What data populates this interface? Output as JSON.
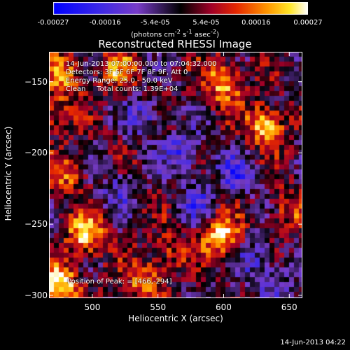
{
  "chart_data": {
    "type": "heatmap",
    "title": "Reconstructed RHESSI Image",
    "xlabel": "Heliocentric X (arcsec)",
    "ylabel": "Heliocentric Y (arcsec)",
    "xlim": [
      467,
      660
    ],
    "ylim": [
      -302,
      -129
    ],
    "x_ticks": [
      500,
      550,
      600,
      650
    ],
    "y_ticks": [
      -150,
      -200,
      -250,
      -300
    ],
    "colorbar": {
      "range": [
        -0.00027,
        0.00027
      ],
      "tick_values": [
        -0.00027,
        -0.00016,
        -5.4e-05,
        5.4e-05,
        0.00016,
        0.00027
      ],
      "tick_labels": [
        "-0.00027",
        "-0.00016",
        "-5.4e-05",
        "5.4e-05",
        "0.00016",
        "0.00027"
      ],
      "unit_label": "(photons cm",
      "unit_sup1": "-2",
      "unit_mid1": " s",
      "unit_sup2": "-1",
      "unit_mid2": " asec",
      "unit_sup3": "-2",
      "unit_end": ")"
    },
    "annotations": {
      "time_range": "14-Jun-2013 07:00:00.000 to 07:04:32.000",
      "detectors": "Detectors: 3F 5F 6F 7F 8F 9F, Att 0",
      "energy": "Energy Range: 25.0 - 50.0 keV",
      "method": "Clean     Total counts: 1.39E+04",
      "peak": "Position of Peak: = [466,-294]"
    },
    "hotspots": [
      {
        "x": 600,
        "y": -150,
        "value": 0.00022
      },
      {
        "x": 632,
        "y": -180,
        "value": 0.00024
      },
      {
        "x": 597,
        "y": -258,
        "value": 0.00025
      },
      {
        "x": 495,
        "y": -258,
        "value": 0.00023
      },
      {
        "x": 475,
        "y": -292,
        "value": 0.00027
      },
      {
        "x": 478,
        "y": -145,
        "value": 0.00018
      },
      {
        "x": 520,
        "y": -142,
        "value": 0.00016
      },
      {
        "x": 540,
        "y": -290,
        "value": 0.00017
      },
      {
        "x": 480,
        "y": -215,
        "value": 0.00015
      },
      {
        "x": 650,
        "y": -240,
        "value": 0.00012
      },
      {
        "x": 560,
        "y": -270,
        "value": 0.0001
      },
      {
        "x": 470,
        "y": -172,
        "value": 0.00014
      }
    ],
    "coldspots": [
      {
        "x": 570,
        "y": -200,
        "value": -0.00016
      },
      {
        "x": 540,
        "y": -175,
        "value": -0.00013
      },
      {
        "x": 610,
        "y": -215,
        "value": -0.00015
      },
      {
        "x": 580,
        "y": -235,
        "value": -0.00012
      },
      {
        "x": 625,
        "y": -275,
        "value": -0.00011
      },
      {
        "x": 640,
        "y": -295,
        "value": -9e-05
      },
      {
        "x": 520,
        "y": -225,
        "value": -0.0001
      }
    ]
  },
  "timestamp": "14-Jun-2013 04:22"
}
